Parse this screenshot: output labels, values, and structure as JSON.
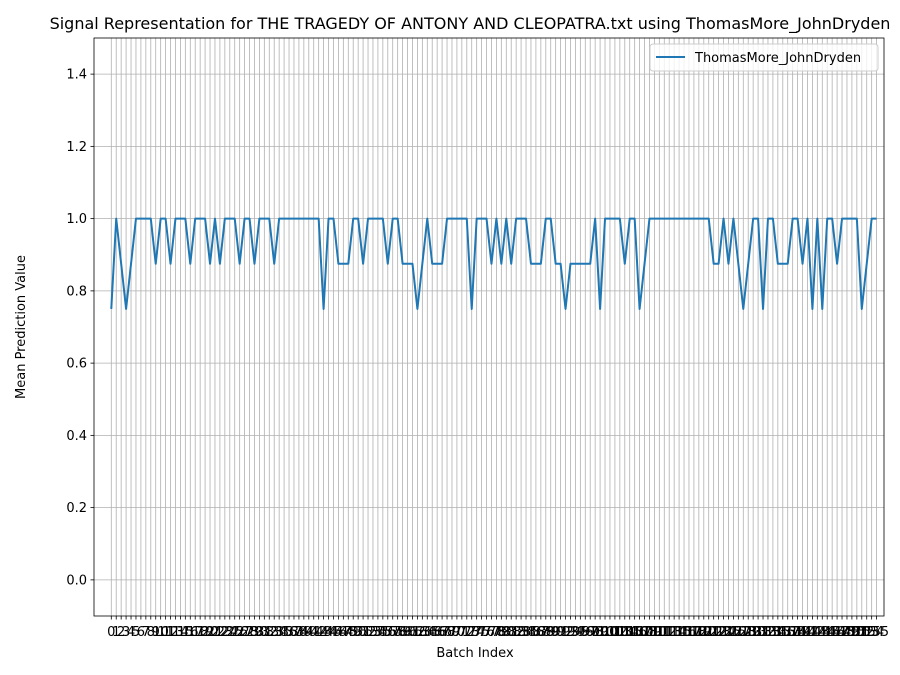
{
  "chart_data": {
    "type": "line",
    "title": "Signal Representation for THE TRAGEDY OF ANTONY AND CLEOPATRA.txt using ThomasMore_JohnDryden",
    "xlabel": "Batch Index",
    "ylabel": "Mean Prediction Value",
    "xlim": [
      -3.5,
      156.5
    ],
    "ylim": [
      -0.1,
      1.5
    ],
    "yticks": [
      0.0,
      0.2,
      0.4,
      0.6,
      0.8,
      1.0,
      1.2,
      1.4
    ],
    "grid": true,
    "legend_position": "top-right",
    "series": [
      {
        "name": "ThomasMore_JohnDryden",
        "color": "#1f77b4",
        "values": [
          0.75,
          1.0,
          0.875,
          0.75,
          0.875,
          1.0,
          1.0,
          1.0,
          1.0,
          0.875,
          1.0,
          1.0,
          0.875,
          1.0,
          1.0,
          1.0,
          0.875,
          1.0,
          1.0,
          1.0,
          0.875,
          1.0,
          0.875,
          1.0,
          1.0,
          1.0,
          0.875,
          1.0,
          1.0,
          0.875,
          1.0,
          1.0,
          1.0,
          0.875,
          1.0,
          1.0,
          1.0,
          1.0,
          1.0,
          1.0,
          1.0,
          1.0,
          1.0,
          0.75,
          1.0,
          1.0,
          0.875,
          0.875,
          0.875,
          1.0,
          1.0,
          0.875,
          1.0,
          1.0,
          1.0,
          1.0,
          0.875,
          1.0,
          1.0,
          0.875,
          0.875,
          0.875,
          0.75,
          0.875,
          1.0,
          0.875,
          0.875,
          0.875,
          1.0,
          1.0,
          1.0,
          1.0,
          1.0,
          0.75,
          1.0,
          1.0,
          1.0,
          0.875,
          1.0,
          0.875,
          1.0,
          0.875,
          1.0,
          1.0,
          1.0,
          0.875,
          0.875,
          0.875,
          1.0,
          1.0,
          0.875,
          0.875,
          0.75,
          0.875,
          0.875,
          0.875,
          0.875,
          0.875,
          1.0,
          0.75,
          1.0,
          1.0,
          1.0,
          1.0,
          0.875,
          1.0,
          1.0,
          0.75,
          0.875,
          1.0,
          1.0,
          1.0,
          1.0,
          1.0,
          1.0,
          1.0,
          1.0,
          1.0,
          1.0,
          1.0,
          1.0,
          1.0,
          0.875,
          0.875,
          1.0,
          0.875,
          1.0,
          0.875,
          0.75,
          0.875,
          1.0,
          1.0,
          0.75,
          1.0,
          1.0,
          0.875,
          0.875,
          0.875,
          1.0,
          1.0,
          0.875,
          1.0,
          0.75,
          1.0,
          0.75,
          1.0,
          1.0,
          0.875,
          1.0,
          1.0,
          1.0,
          1.0,
          0.75,
          0.875,
          1.0,
          1.0
        ]
      }
    ]
  }
}
